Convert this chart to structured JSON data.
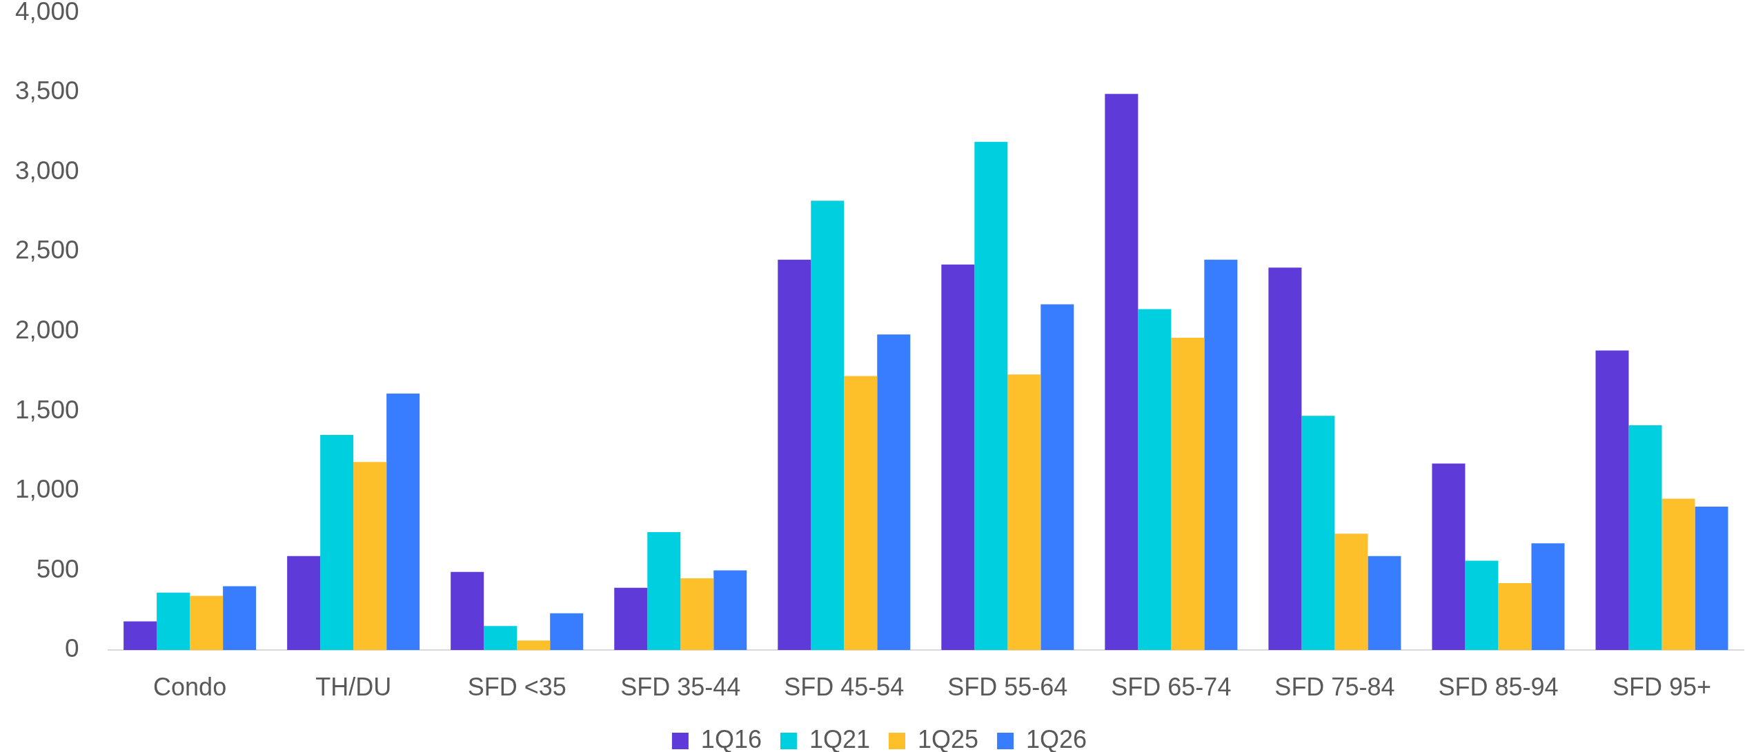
{
  "chart_data": {
    "type": "bar",
    "categories": [
      "Condo",
      "TH/DU",
      "SFD <35",
      "SFD 35-44",
      "SFD 45-54",
      "SFD 55-64",
      "SFD 65-74",
      "SFD 75-84",
      "SFD 85-94",
      "SFD 95+"
    ],
    "series": [
      {
        "name": "1Q16",
        "color": "#5e3bd9",
        "values": [
          180,
          590,
          490,
          390,
          2450,
          2420,
          3490,
          2400,
          1170,
          1880
        ]
      },
      {
        "name": "1Q21",
        "color": "#00cfe0",
        "values": [
          360,
          1350,
          150,
          740,
          2820,
          3190,
          2140,
          1470,
          560,
          1410
        ]
      },
      {
        "name": "1Q25",
        "color": "#fdc02a",
        "values": [
          340,
          1180,
          60,
          450,
          1720,
          1730,
          1960,
          730,
          420,
          950
        ]
      },
      {
        "name": "1Q26",
        "color": "#377dfe",
        "values": [
          400,
          1610,
          230,
          500,
          1980,
          2170,
          2450,
          590,
          670,
          900
        ]
      }
    ],
    "ylim": [
      0,
      4000
    ],
    "yticks": [
      {
        "value": 0,
        "label": "0"
      },
      {
        "value": 500,
        "label": "500"
      },
      {
        "value": 1000,
        "label": "1,000"
      },
      {
        "value": 1500,
        "label": "1,500"
      },
      {
        "value": 2000,
        "label": "2,000"
      },
      {
        "value": 2500,
        "label": "2,500"
      },
      {
        "value": 3000,
        "label": "3,000"
      },
      {
        "value": 3500,
        "label": "3,500"
      },
      {
        "value": 4000,
        "label": "4,000"
      }
    ],
    "grid": false,
    "legend": "bottom"
  }
}
